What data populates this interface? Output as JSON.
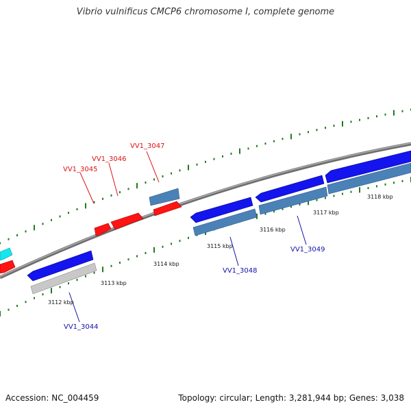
{
  "title": "Vibrio vulnificus CMCP6 chromosome I, complete genome",
  "accession_text": "Accession: NC_004459",
  "summary_text": "Topology: circular; Length: 3,281,944 bp; Genes: 3,038",
  "colors": {
    "backbone": "#8a8a8a",
    "tick_dots": "#1e7a1e",
    "gene_red": "#ff1414",
    "gene_blue": "#1414ee",
    "gene_steel": "#4a82b8",
    "gene_gray": "#c8c8c8",
    "gene_cyan": "#14e6ee",
    "label_red": "#dd1111",
    "label_blue": "#1111aa"
  },
  "position_labels": [
    "3112 kbp",
    "3113 kbp",
    "3114 kbp",
    "3115 kbp",
    "3116 kbp",
    "3117 kbp",
    "3118 kbp"
  ],
  "gene_labels": [
    {
      "id": "VV1_3044",
      "strand": "reverse"
    },
    {
      "id": "VV1_3045",
      "strand": "forward"
    },
    {
      "id": "VV1_3046",
      "strand": "forward"
    },
    {
      "id": "VV1_3047",
      "strand": "forward"
    },
    {
      "id": "VV1_3048",
      "strand": "reverse"
    },
    {
      "id": "VV1_3049",
      "strand": "reverse"
    }
  ]
}
